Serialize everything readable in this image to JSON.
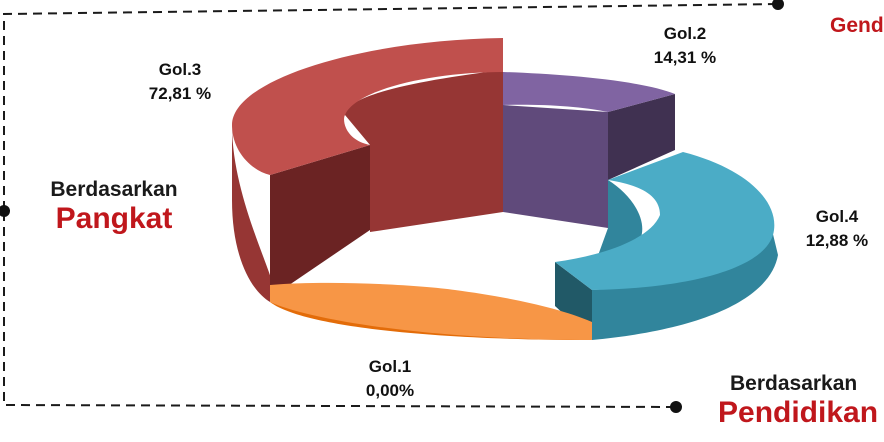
{
  "chart_data": {
    "type": "pie",
    "style": "3d-donut",
    "categories": [
      "Gol.1",
      "Gol.2",
      "Gol.3",
      "Gol.4"
    ],
    "values": [
      0.0,
      14.31,
      72.81,
      12.88
    ],
    "value_labels": [
      "0,00%",
      "14,31 %",
      "72,81 %",
      "12,88 %"
    ],
    "unit": "%"
  },
  "labels": {
    "gol1": {
      "name": "Gol.1",
      "value": "0,00%"
    },
    "gol2": {
      "name": "Gol.2",
      "value": "14,31 %"
    },
    "gol3": {
      "name": "Gol.3",
      "value": "72,81 %"
    },
    "gol4": {
      "name": "Gol.4",
      "value": "12,88 %"
    }
  },
  "panels": {
    "left": {
      "line1": "Berdasarkan",
      "line2": "Pangkat"
    },
    "bottom_right": {
      "line1": "Berdasarkan",
      "line2": "Pendidikan"
    },
    "top_right": {
      "text": "Gender"
    }
  },
  "colors": {
    "gol1": "#f79646",
    "gol2": "#8064a2",
    "gol3": "#c0504d",
    "gol4": "#4bacc6",
    "accent": "#c0171c"
  }
}
